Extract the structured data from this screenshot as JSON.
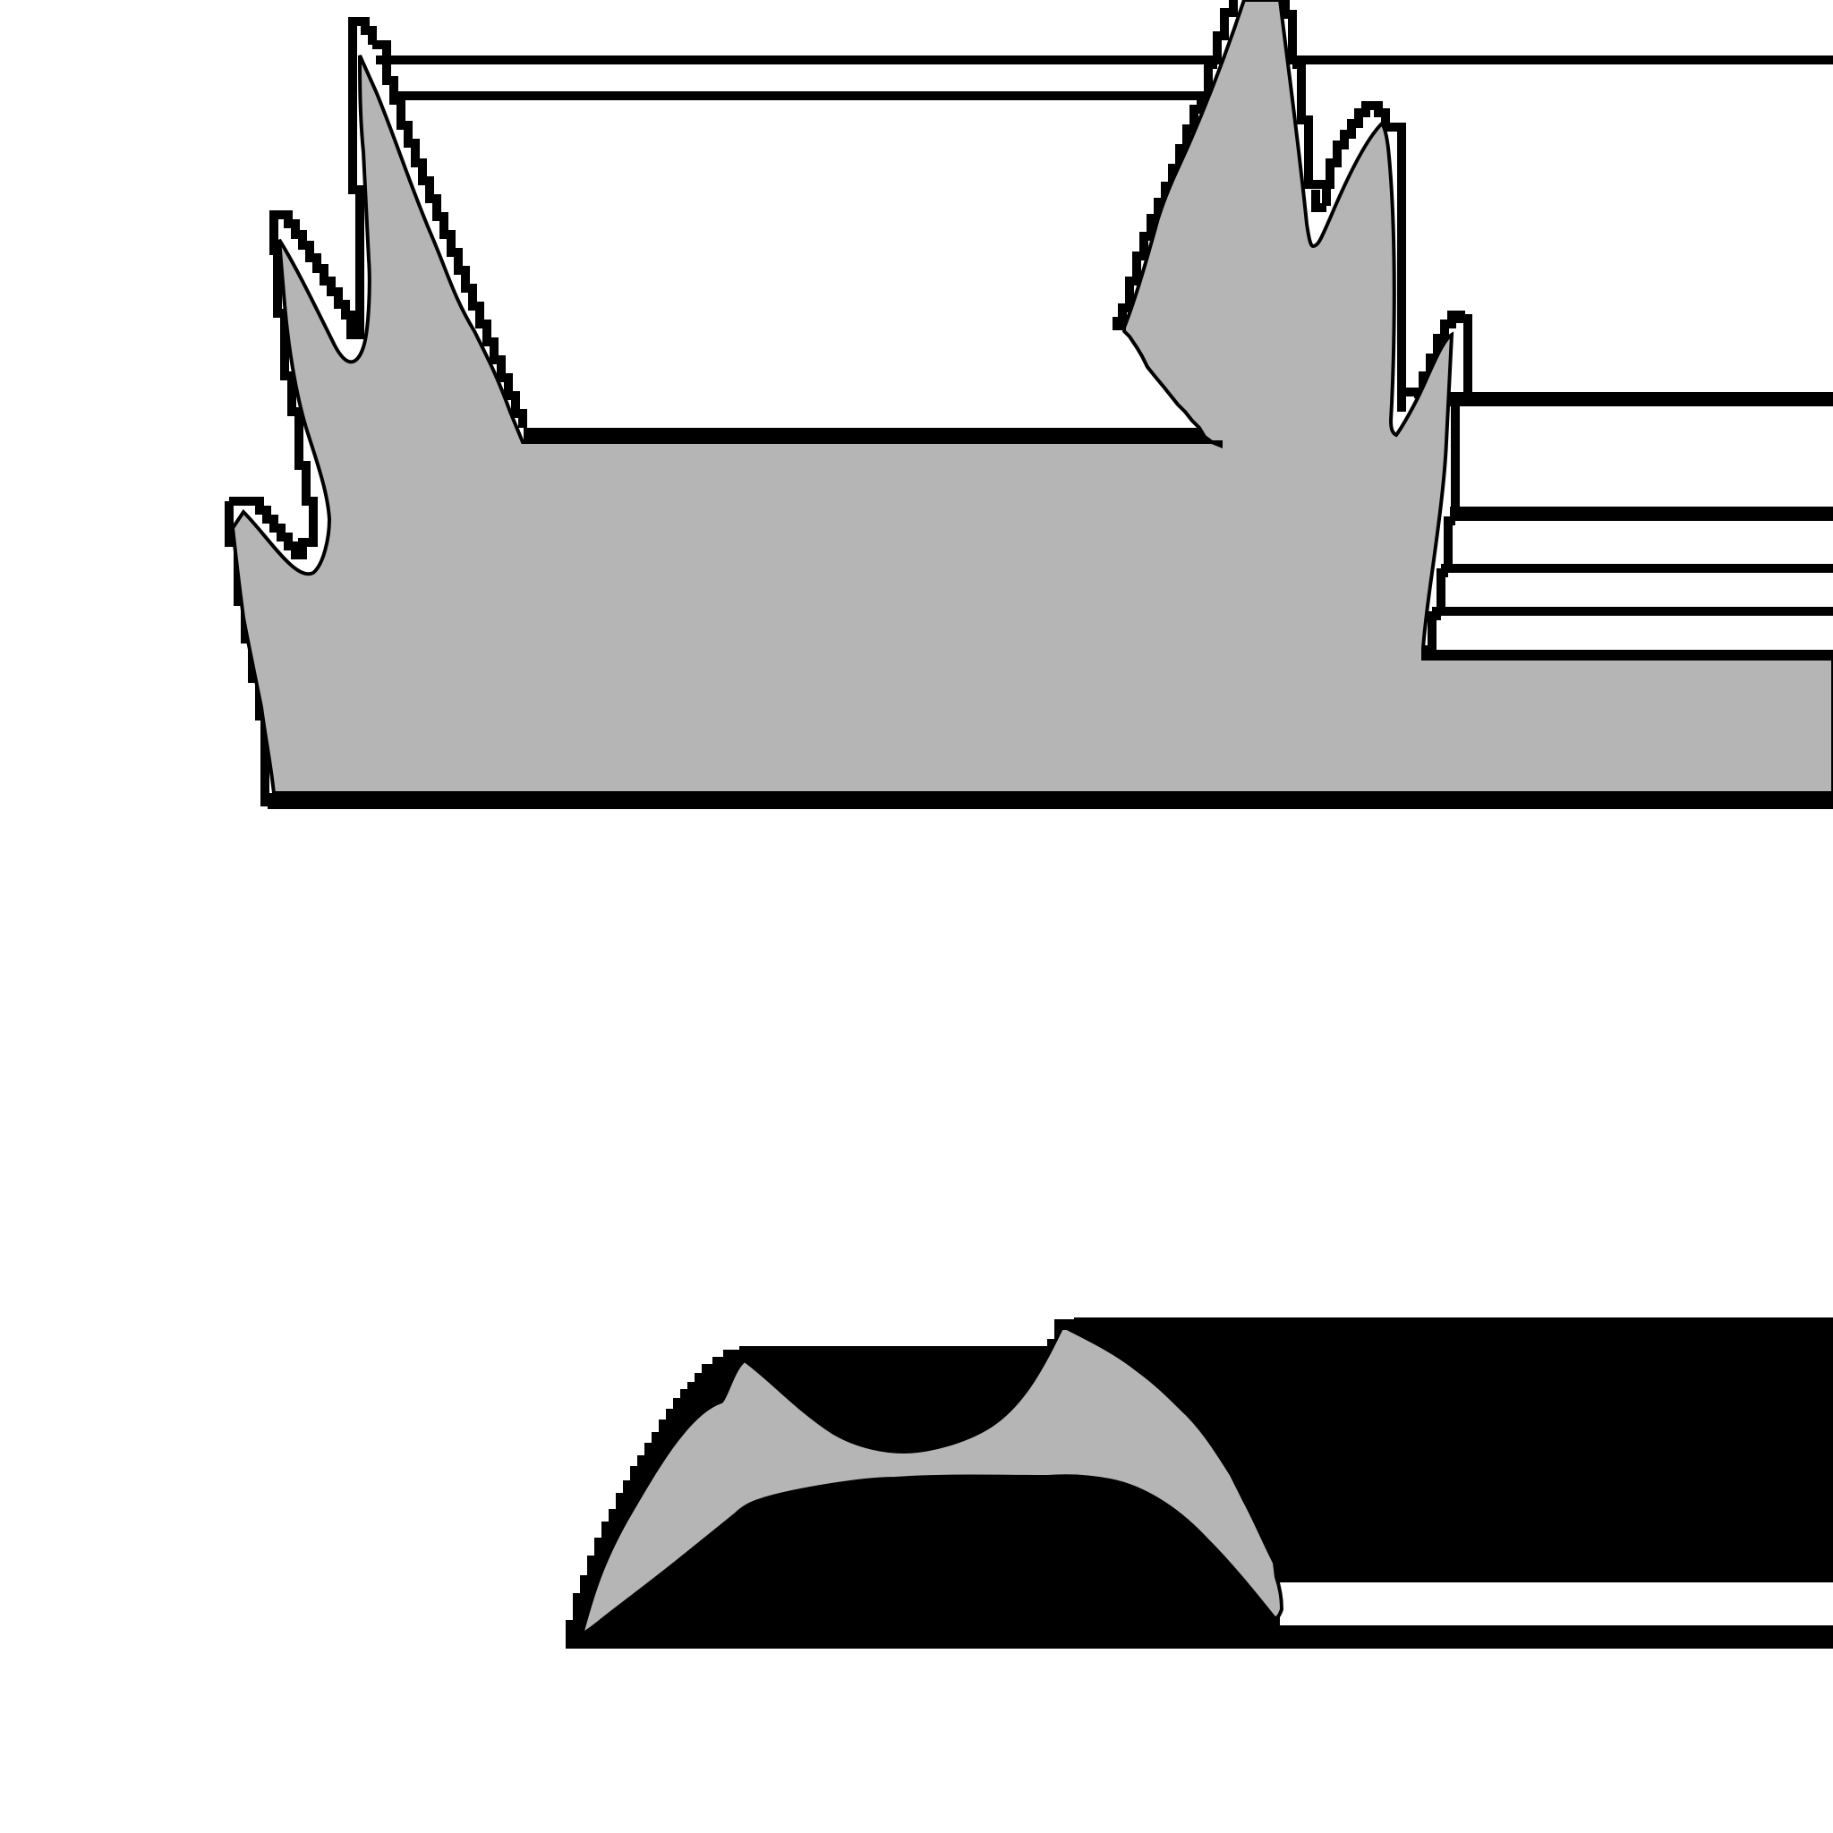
{
  "colors": {
    "background": "#ffffff",
    "outline": "#000000",
    "fill": "#b5b5b5"
  },
  "shapes": [
    {
      "name": "upper-flame-shape",
      "kind": "gray silhouette with pixelated black outline"
    },
    {
      "name": "lower-arch-shape",
      "kind": "gray arch on black block"
    }
  ]
}
